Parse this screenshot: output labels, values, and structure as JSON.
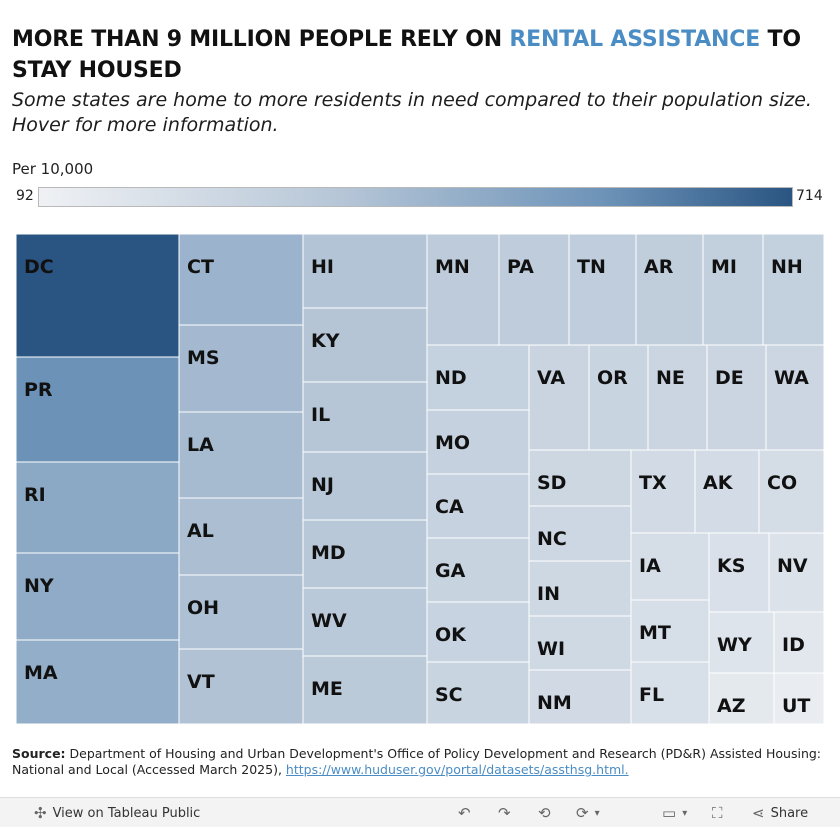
{
  "title": {
    "part1": "MORE THAN 9 MILLION PEOPLE RELY ON ",
    "highlight": "RENTAL ASSISTANCE",
    "part2": " TO STAY HOUSED"
  },
  "subtitle": "Some states are home to more residents in need compared to their population size. Hover for more information.",
  "legend": {
    "title": "Per 10,000",
    "min": "92",
    "max": "714"
  },
  "chart_data": {
    "type": "treemap",
    "measure": "Per 10,000",
    "color_range": [
      92,
      714
    ],
    "items": [
      {
        "label": "DC",
        "value": 714
      },
      {
        "label": "PR",
        "value": 560
      },
      {
        "label": "RI",
        "value": 470
      },
      {
        "label": "NY",
        "value": 455
      },
      {
        "label": "MA",
        "value": 445
      },
      {
        "label": "CT",
        "value": 420
      },
      {
        "label": "MS",
        "value": 395
      },
      {
        "label": "LA",
        "value": 390
      },
      {
        "label": "AL",
        "value": 375
      },
      {
        "label": "OH",
        "value": 365
      },
      {
        "label": "VT",
        "value": 360
      },
      {
        "label": "HI",
        "value": 350
      },
      {
        "label": "KY",
        "value": 345
      },
      {
        "label": "IL",
        "value": 340
      },
      {
        "label": "NJ",
        "value": 335
      },
      {
        "label": "MD",
        "value": 330
      },
      {
        "label": "WV",
        "value": 325
      },
      {
        "label": "ME",
        "value": 320
      },
      {
        "label": "MN",
        "value": 310
      },
      {
        "label": "PA",
        "value": 305
      },
      {
        "label": "TN",
        "value": 300
      },
      {
        "label": "AR",
        "value": 295
      },
      {
        "label": "MI",
        "value": 290
      },
      {
        "label": "NH",
        "value": 285
      },
      {
        "label": "ND",
        "value": 280
      },
      {
        "label": "MO",
        "value": 275
      },
      {
        "label": "CA",
        "value": 270
      },
      {
        "label": "GA",
        "value": 268
      },
      {
        "label": "OK",
        "value": 265
      },
      {
        "label": "SC",
        "value": 262
      },
      {
        "label": "VA",
        "value": 260
      },
      {
        "label": "OR",
        "value": 258
      },
      {
        "label": "NE",
        "value": 255
      },
      {
        "label": "DE",
        "value": 252
      },
      {
        "label": "WA",
        "value": 250
      },
      {
        "label": "SD",
        "value": 245
      },
      {
        "label": "NC",
        "value": 240
      },
      {
        "label": "IN",
        "value": 235
      },
      {
        "label": "WI",
        "value": 230
      },
      {
        "label": "NM",
        "value": 225
      },
      {
        "label": "TX",
        "value": 220
      },
      {
        "label": "AK",
        "value": 215
      },
      {
        "label": "CO",
        "value": 210
      },
      {
        "label": "IA",
        "value": 205
      },
      {
        "label": "MT",
        "value": 200
      },
      {
        "label": "FL",
        "value": 195
      },
      {
        "label": "KS",
        "value": 190
      },
      {
        "label": "NV",
        "value": 180
      },
      {
        "label": "WY",
        "value": 170
      },
      {
        "label": "ID",
        "value": 150
      },
      {
        "label": "AZ",
        "value": 140
      },
      {
        "label": "UT",
        "value": 120
      }
    ]
  },
  "source": {
    "label": "Source:",
    "text": " Department of Housing and Urban Development's Office of Policy Development and Research (PD&R) Assisted Housing: National and Local (Accessed March 2025), ",
    "url": "https://www.huduser.gov/portal/datasets/assthsg.html."
  },
  "footer": {
    "view_label": "View on Tableau Public",
    "share_label": "Share"
  }
}
